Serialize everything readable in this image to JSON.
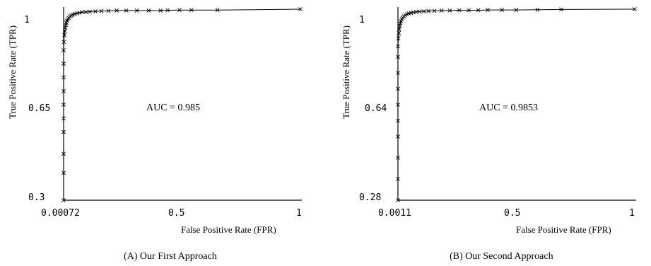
{
  "chart_data": [
    {
      "type": "line",
      "caption": "(A) Our First Approach",
      "annotation": "AUC = 0.985",
      "xlabel": "False Positive Rate  (FPR)",
      "ylabel": "True Positive Rate (TPR)",
      "xticks": [
        "0.00072",
        "0.5",
        "1"
      ],
      "yticks": [
        "0.3",
        "0.65",
        "1"
      ],
      "xlim": [
        0.00072,
        1
      ],
      "ylim": [
        0.3,
        1
      ],
      "grid": false,
      "legend": "none",
      "series": [
        {
          "marker": "x",
          "x": [
            0.00072,
            0.00072,
            0.00072,
            0.00072,
            0.00072,
            0.00072,
            0.00072,
            0.00072,
            0.00072,
            0.00072,
            0.002,
            0.004,
            0.006,
            0.008,
            0.01,
            0.012,
            0.015,
            0.018,
            0.022,
            0.027,
            0.033,
            0.04,
            0.048,
            0.057,
            0.067,
            0.08,
            0.095,
            0.112,
            0.135,
            0.16,
            0.19,
            0.225,
            0.265,
            0.31,
            0.36,
            0.41,
            0.44,
            0.49,
            0.54,
            0.65,
            1.0
          ],
          "y": [
            0.3,
            0.4,
            0.47,
            0.55,
            0.6,
            0.65,
            0.7,
            0.75,
            0.8,
            0.85,
            0.88,
            0.905,
            0.92,
            0.932,
            0.942,
            0.95,
            0.957,
            0.963,
            0.968,
            0.973,
            0.977,
            0.98,
            0.983,
            0.985,
            0.987,
            0.989,
            0.99,
            0.991,
            0.992,
            0.993,
            0.994,
            0.995,
            0.995,
            0.995,
            0.995,
            0.995,
            0.996,
            0.997,
            0.997,
            0.997,
            1.0
          ]
        }
      ]
    },
    {
      "type": "line",
      "caption": "(B) Our Second Approach",
      "annotation": "AUC = 0.9853",
      "xlabel": "False Positive Rate  (FPR)",
      "ylabel": "True Positive Rate (TPR)",
      "xticks": [
        "0.0011",
        "0.5",
        "1"
      ],
      "yticks": [
        "0.28",
        "0.64",
        "1"
      ],
      "xlim": [
        0.0011,
        1
      ],
      "ylim": [
        0.28,
        1
      ],
      "grid": false,
      "legend": "none",
      "series": [
        {
          "marker": "x",
          "x": [
            0.0011,
            0.0011,
            0.0011,
            0.0011,
            0.0011,
            0.0011,
            0.0011,
            0.0011,
            0.0011,
            0.0011,
            0.003,
            0.005,
            0.007,
            0.009,
            0.011,
            0.014,
            0.017,
            0.021,
            0.026,
            0.032,
            0.039,
            0.047,
            0.056,
            0.066,
            0.078,
            0.092,
            0.11,
            0.13,
            0.155,
            0.185,
            0.22,
            0.26,
            0.3,
            0.34,
            0.38,
            0.44,
            0.5,
            0.59,
            0.69,
            1.0
          ],
          "y": [
            0.28,
            0.36,
            0.44,
            0.52,
            0.58,
            0.64,
            0.7,
            0.76,
            0.82,
            0.86,
            0.89,
            0.91,
            0.925,
            0.937,
            0.947,
            0.955,
            0.962,
            0.968,
            0.973,
            0.977,
            0.981,
            0.984,
            0.986,
            0.988,
            0.99,
            0.991,
            0.992,
            0.993,
            0.994,
            0.995,
            0.995,
            0.996,
            0.996,
            0.996,
            0.997,
            0.997,
            0.997,
            0.998,
            0.999,
            1.0
          ]
        }
      ]
    }
  ]
}
